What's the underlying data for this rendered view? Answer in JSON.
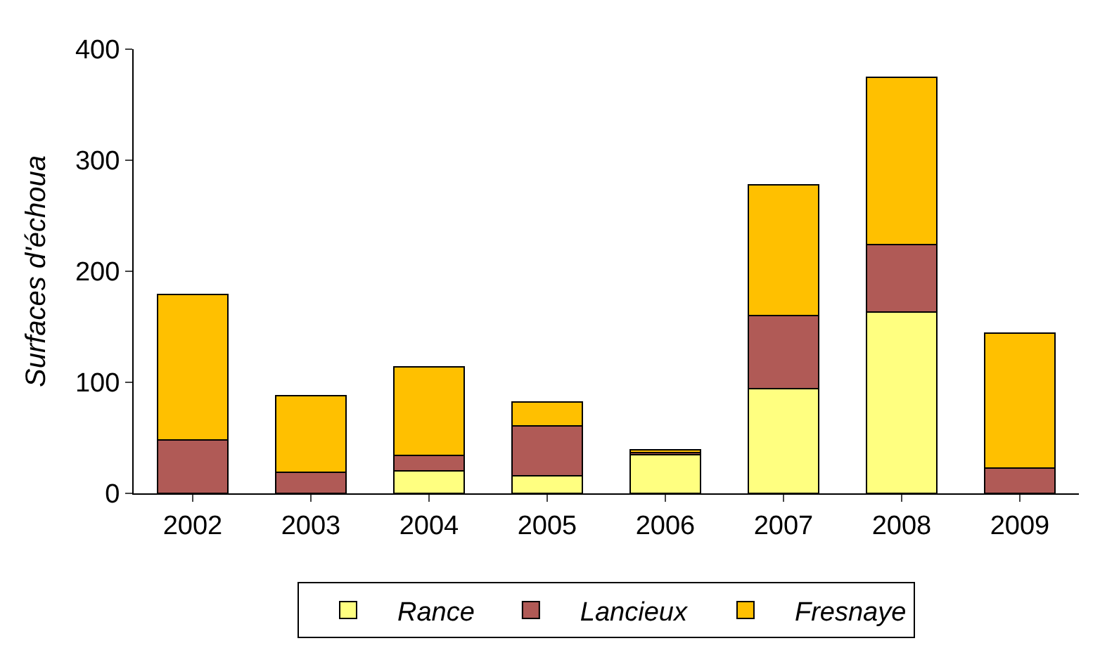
{
  "chart_data": {
    "type": "bar",
    "stacked": true,
    "ylabel": "Surfaces d'échoua",
    "categories": [
      "2002",
      "2003",
      "2004",
      "2005",
      "2006",
      "2007",
      "2008",
      "2009"
    ],
    "series": [
      {
        "name": "Rance",
        "color": "#ffff80",
        "values": [
          0,
          0,
          20,
          16,
          35,
          94,
          163,
          0
        ]
      },
      {
        "name": "Lancieux",
        "color": "#b05a56",
        "values": [
          48,
          19,
          14,
          45,
          2,
          66,
          61,
          23
        ]
      },
      {
        "name": "Fresnaye",
        "color": "#ffc000",
        "values": [
          131,
          69,
          80,
          21,
          2,
          118,
          151,
          121
        ]
      }
    ],
    "ylim": [
      0,
      400
    ],
    "yticks": [
      0,
      100,
      200,
      300,
      400
    ],
    "grid": false,
    "legend": "bottom"
  }
}
